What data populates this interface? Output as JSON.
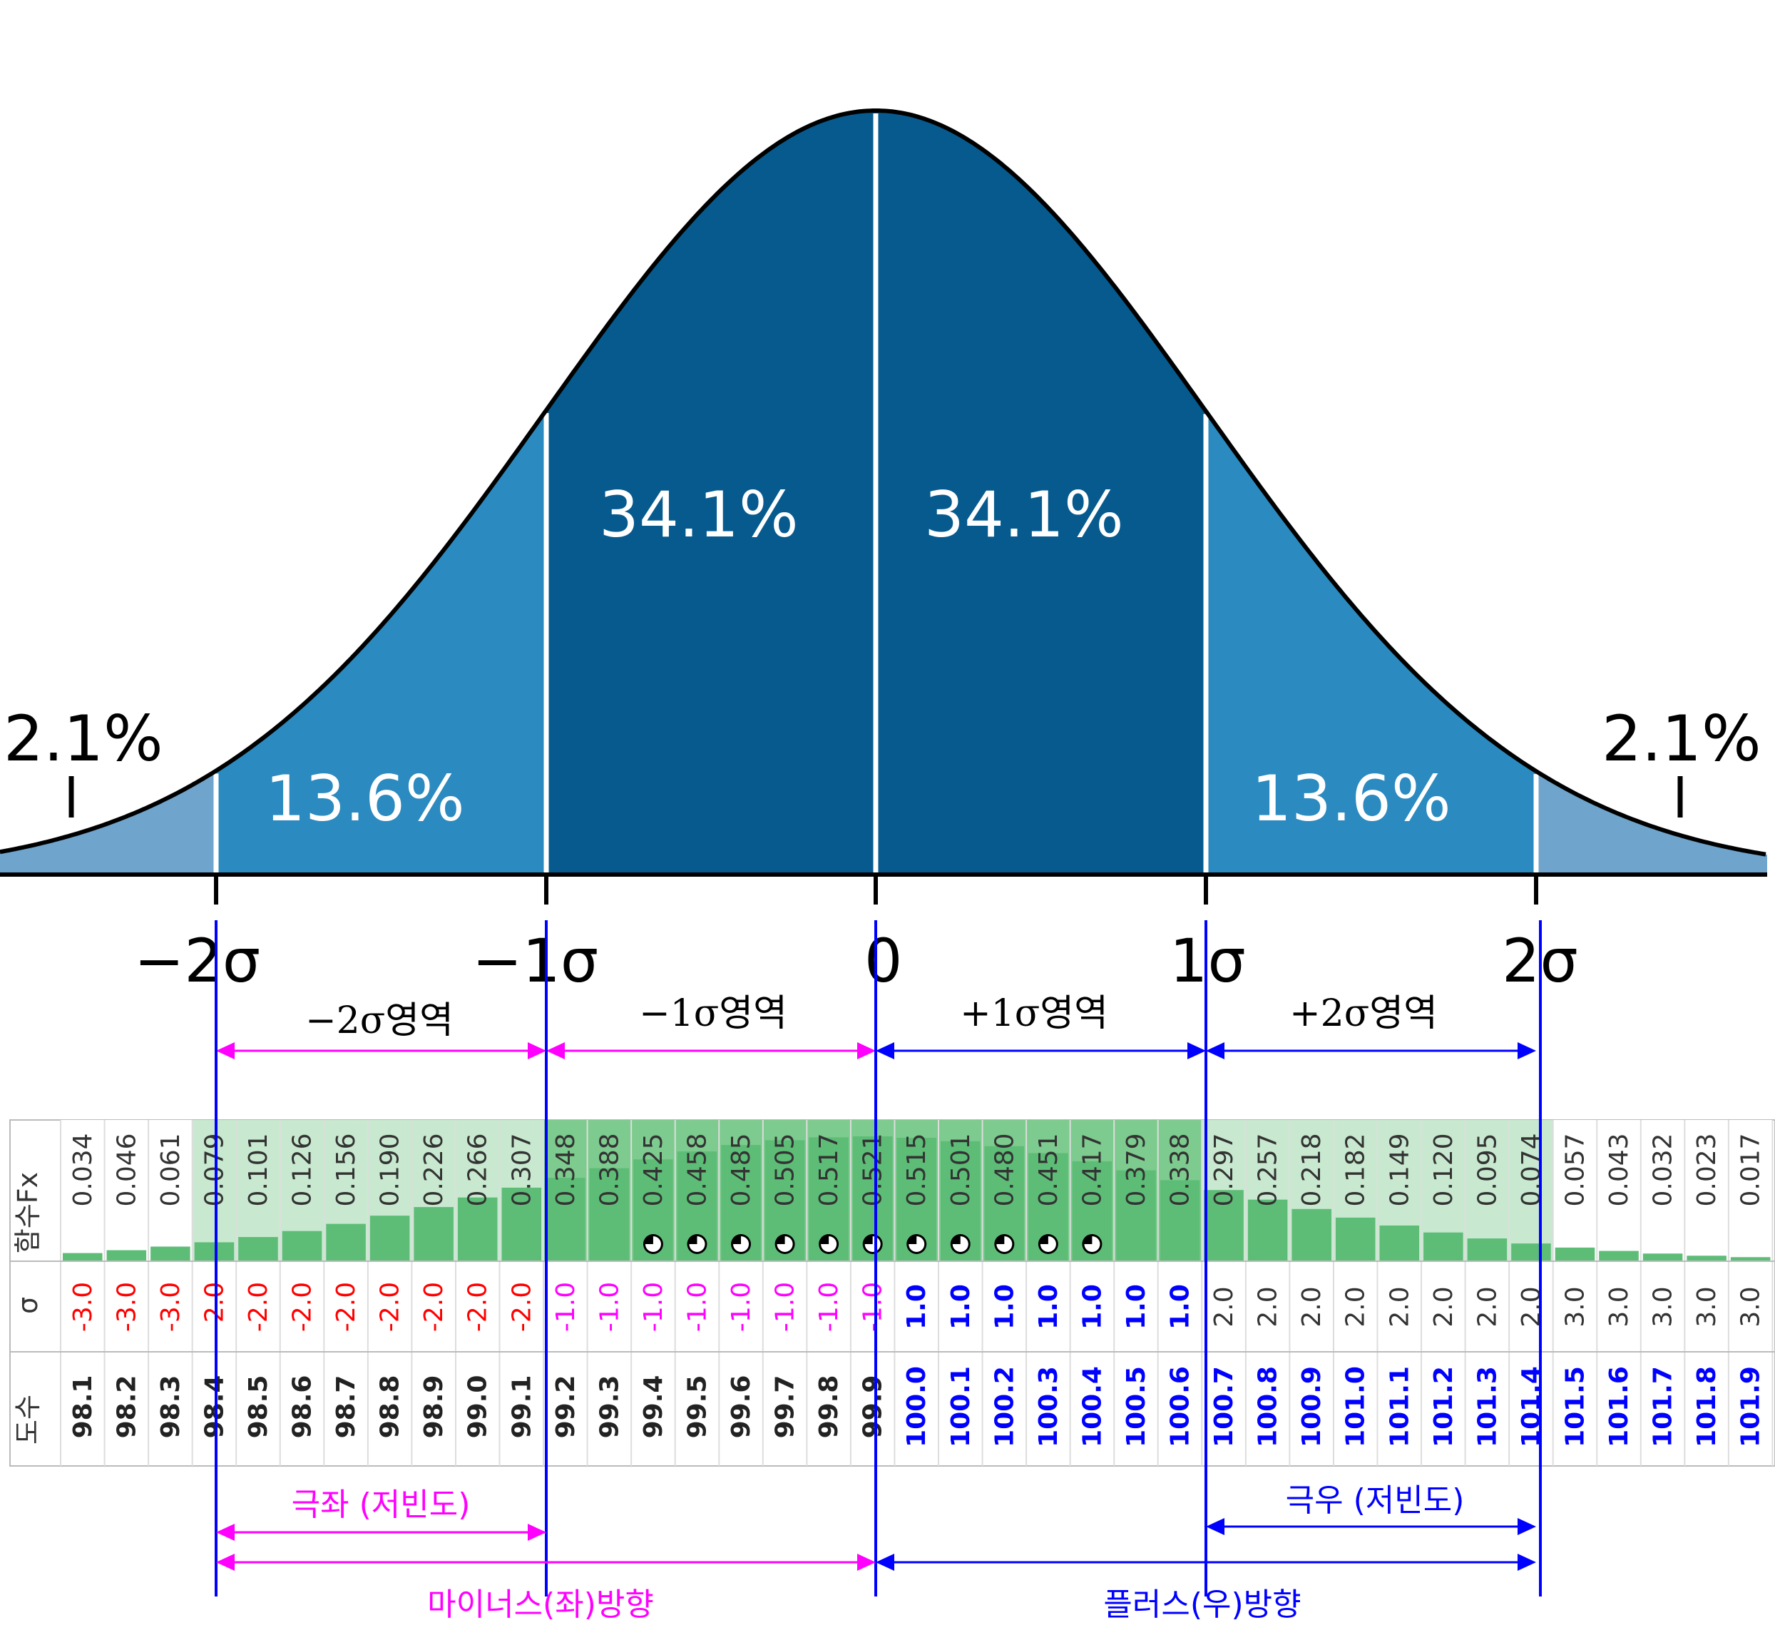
{
  "curve": {
    "regions": [
      {
        "id": "tail-left",
        "pct": "2.1%",
        "color": "#6fa4cc"
      },
      {
        "id": "minus2",
        "pct": "13.6%",
        "color": "#2b8abf"
      },
      {
        "id": "minus1",
        "pct": "34.1%",
        "color": "#065a8e"
      },
      {
        "id": "plus1",
        "pct": "34.1%",
        "color": "#065a8e"
      },
      {
        "id": "plus2",
        "pct": "13.6%",
        "color": "#2b8abf"
      },
      {
        "id": "tail-right",
        "pct": "2.1%",
        "color": "#6fa4cc"
      }
    ],
    "axis_labels": [
      "−2σ",
      "−1σ",
      "0",
      "1σ",
      "2σ"
    ]
  },
  "regions": {
    "minus2": "−2σ영역",
    "minus1": "−1σ영역",
    "plus1": "+1σ영역",
    "plus2": "+2σ영역"
  },
  "table": {
    "row_headers": {
      "fx": "함수Fx",
      "sigma": "σ",
      "degree": "도수"
    },
    "fx": [
      "0.034",
      "0.046",
      "0.061",
      "0.079",
      "0.101",
      "0.126",
      "0.156",
      "0.190",
      "0.226",
      "0.266",
      "0.307",
      "0.348",
      "0.388",
      "0.425",
      "0.458",
      "0.485",
      "0.505",
      "0.517",
      "0.521",
      "0.515",
      "0.501",
      "0.480",
      "0.451",
      "0.417",
      "0.379",
      "0.338",
      "0.297",
      "0.257",
      "0.218",
      "0.182",
      "0.149",
      "0.120",
      "0.095",
      "0.074",
      "0.057",
      "0.043",
      "0.032",
      "0.023",
      "0.017"
    ],
    "sigma": [
      "-3.0",
      "-3.0",
      "-3.0",
      "-2.0",
      "-2.0",
      "-2.0",
      "-2.0",
      "-2.0",
      "-2.0",
      "-2.0",
      "-2.0",
      "-1.0",
      "-1.0",
      "-1.0",
      "-1.0",
      "-1.0",
      "-1.0",
      "-1.0",
      "-1.0",
      "1.0",
      "1.0",
      "1.0",
      "1.0",
      "1.0",
      "1.0",
      "1.0",
      "2.0",
      "2.0",
      "2.0",
      "2.0",
      "2.0",
      "2.0",
      "2.0",
      "2.0",
      "3.0",
      "3.0",
      "3.0",
      "3.0",
      "3.0"
    ],
    "degree": [
      "98.1",
      "98.2",
      "98.3",
      "98.4",
      "98.5",
      "98.6",
      "98.7",
      "98.8",
      "98.9",
      "99.0",
      "99.1",
      "99.2",
      "99.3",
      "99.4",
      "99.5",
      "99.6",
      "99.7",
      "99.8",
      "99.9",
      "100.0",
      "100.1",
      "100.2",
      "100.3",
      "100.4",
      "100.5",
      "100.6",
      "100.7",
      "100.8",
      "100.9",
      "101.0",
      "101.1",
      "101.2",
      "101.3",
      "101.4",
      "101.5",
      "101.6",
      "101.7",
      "101.8",
      "101.9"
    ],
    "colors": {
      "negative": "#ff0000",
      "minus_one": "#ff00ff",
      "positive": "#0000ff",
      "neutral": "#333333",
      "bar": "#5dbd77"
    }
  },
  "annotations": {
    "left_extreme": "극좌 (저빈도)",
    "right_extreme": "극우 (저빈도)",
    "minus_direction": "마이너스(좌)방향",
    "plus_direction": "플러스(우)방향",
    "magenta": "#ff00ff",
    "blue": "#0000ff"
  }
}
